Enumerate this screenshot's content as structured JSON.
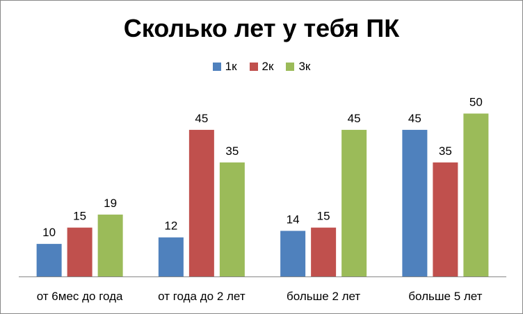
{
  "chart_data": {
    "type": "bar",
    "title": "Сколько лет у тебя ПК",
    "categories": [
      "от 6мес до года",
      "от года до 2 лет",
      "больше 2 лет",
      "больше 5 лет"
    ],
    "series": [
      {
        "name": "1к",
        "color": "#4F81BD",
        "values": [
          10,
          12,
          14,
          45
        ]
      },
      {
        "name": "2к",
        "color": "#C0504D",
        "values": [
          15,
          45,
          15,
          35
        ]
      },
      {
        "name": "3к",
        "color": "#9BBB59",
        "values": [
          19,
          35,
          45,
          50
        ]
      }
    ],
    "ylim": [
      0,
      55
    ],
    "grid": false,
    "legend_position": "top",
    "data_labels": true
  }
}
